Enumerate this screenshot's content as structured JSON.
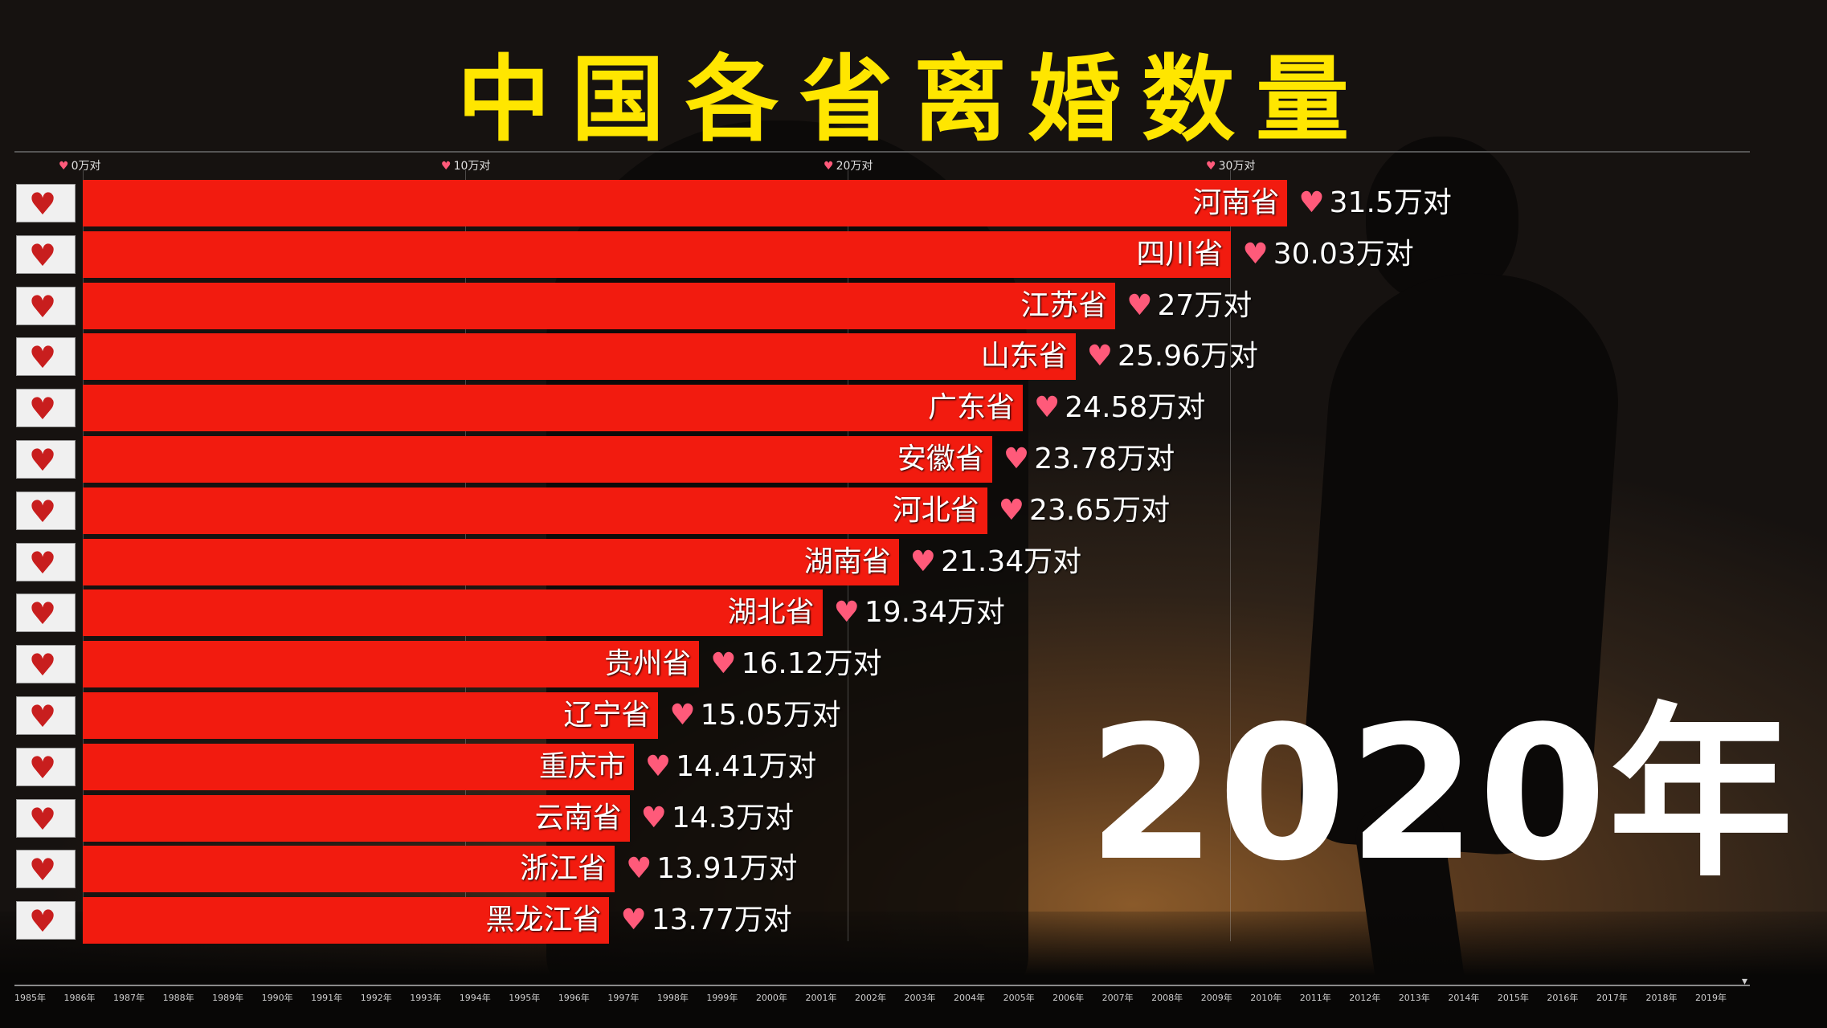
{
  "title": "中国各省离婚数量",
  "year_label": "2020年",
  "colors": {
    "bar": "#f21b0f",
    "title": "#ffe600",
    "heart": "#ff5a7a"
  },
  "icons": {
    "flag": "broken-heart-icon",
    "value": "heart-icon"
  },
  "chart_data": {
    "type": "bar",
    "orientation": "horizontal",
    "title": "中国各省离婚数量",
    "unit": "万对",
    "xlim": [
      0,
      34.5
    ],
    "x_ticks": [
      {
        "value": 0,
        "label": "0万对"
      },
      {
        "value": 10,
        "label": "10万对"
      },
      {
        "value": 20,
        "label": "20万对"
      },
      {
        "value": 30,
        "label": "30万对"
      }
    ],
    "categories": [
      "河南省",
      "四川省",
      "江苏省",
      "山东省",
      "广东省",
      "安徽省",
      "河北省",
      "湖南省",
      "湖北省",
      "贵州省",
      "辽宁省",
      "重庆市",
      "云南省",
      "浙江省",
      "黑龙江省"
    ],
    "values": [
      31.5,
      30.03,
      27,
      25.96,
      24.58,
      23.78,
      23.65,
      21.34,
      19.34,
      16.12,
      15.05,
      14.41,
      14.3,
      13.91,
      13.77
    ],
    "value_labels": [
      "31.5万对",
      "30.03万对",
      "27万对",
      "25.96万对",
      "24.58万对",
      "23.78万对",
      "23.65万对",
      "21.34万对",
      "19.34万对",
      "16.12万对",
      "15.05万对",
      "14.41万对",
      "14.3万对",
      "13.91万对",
      "13.77万对"
    ],
    "grid": true
  },
  "timeline": {
    "labels": [
      "1985年",
      "1986年",
      "1987年",
      "1988年",
      "1989年",
      "1990年",
      "1991年",
      "1992年",
      "1993年",
      "1994年",
      "1995年",
      "1996年",
      "1997年",
      "1998年",
      "1999年",
      "2000年",
      "2001年",
      "2002年",
      "2003年",
      "2004年",
      "2005年",
      "2006年",
      "2007年",
      "2008年",
      "2009年",
      "2010年",
      "2011年",
      "2012年",
      "2013年",
      "2014年",
      "2015年",
      "2016年",
      "2017年",
      "2018年",
      "2019年"
    ],
    "current": "2020年"
  }
}
